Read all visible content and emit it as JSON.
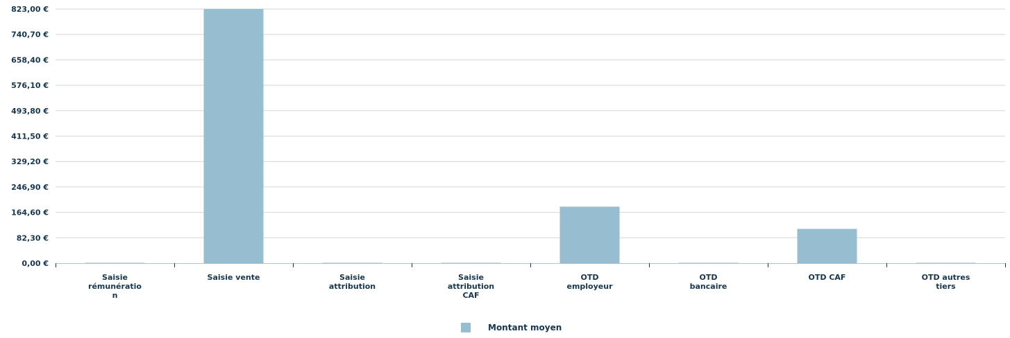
{
  "chart_data": {
    "type": "bar",
    "categories": [
      [
        "Saisie",
        "rémunératio",
        "n"
      ],
      [
        "Saisie vente"
      ],
      [
        "Saisie",
        "attribution"
      ],
      [
        "Saisie",
        "attribution",
        "CAF"
      ],
      [
        "OTD",
        "employeur"
      ],
      [
        "OTD",
        "bancaire"
      ],
      [
        "OTD CAF"
      ],
      [
        "OTD autres",
        "tiers"
      ]
    ],
    "series": [
      {
        "name": "Montant moyen",
        "values": [
          0,
          823,
          0,
          0,
          183,
          0,
          111,
          0
        ]
      }
    ],
    "yticks": [
      "0,00 €",
      "82,30 €",
      "164,60 €",
      "246,90 €",
      "329,20 €",
      "411,50 €",
      "493,80 €",
      "576,10 €",
      "658,40 €",
      "740,70 €",
      "823,00 €"
    ],
    "ylim": [
      0,
      823
    ],
    "grid": true,
    "legend_position": "bottom-center",
    "bar_color": "#97bdd0",
    "title": "",
    "xlabel": "",
    "ylabel": ""
  }
}
